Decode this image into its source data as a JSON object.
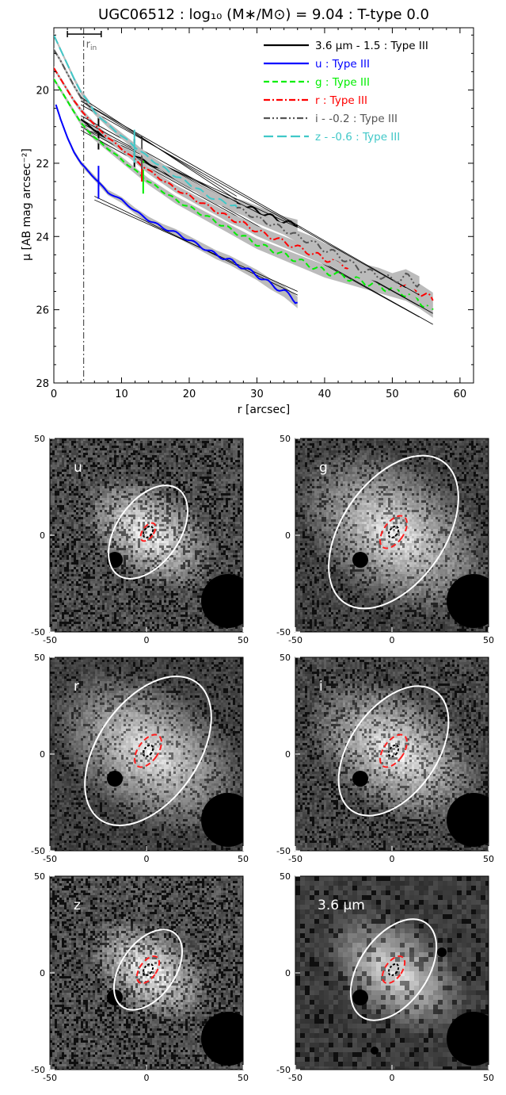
{
  "title": "UGC06512 : log₁₀ (M∗/M⊙) = 9.04 : T-type 0.0",
  "colors": {
    "band_3_6": "#000000",
    "band_u": "#0000ff",
    "band_g": "#00ee00",
    "band_r": "#ff0000",
    "band_i": "#555555",
    "band_z": "#40c8c8",
    "rin_line": "#555555",
    "ellipse_outer": "#ffffff",
    "ellipse_inner": "#ff2020",
    "ellipse_core": "#000000"
  },
  "chart_data": [
    {
      "type": "line",
      "xlabel": "r [arcsec]",
      "ylabel": "μ [AB mag arcsec⁻²]",
      "xlim": [
        0,
        62
      ],
      "ylim": [
        28,
        18.3
      ],
      "y_inverted": true,
      "xticks": [
        0,
        10,
        20,
        30,
        40,
        50,
        60
      ],
      "yticks": [
        20,
        22,
        24,
        26,
        28
      ],
      "legend_position": "top-right",
      "r_in": {
        "label": "r",
        "subscript": "in",
        "value": 4.4,
        "bar": [
          2,
          7
        ]
      },
      "series": [
        {
          "name": "3.6 μm - 1.5 : Type III",
          "color_key": "band_3_6",
          "style": "solid",
          "x": [
            4,
            6,
            8,
            10,
            12,
            14,
            16,
            18,
            20,
            22,
            24,
            26,
            28,
            30,
            32,
            34,
            36
          ],
          "y": [
            20.8,
            21.1,
            21.35,
            21.6,
            21.8,
            22.0,
            22.2,
            22.4,
            22.6,
            22.75,
            22.9,
            23.05,
            23.15,
            23.3,
            23.45,
            23.6,
            23.7
          ],
          "breaks": [
            6.6,
            11.9
          ],
          "fits": [
            {
              "x": [
                4,
                36
              ],
              "y": [
                20.9,
                23.9
              ]
            },
            {
              "x": [
                4,
                36
              ],
              "y": [
                21.0,
                23.75
              ]
            }
          ]
        },
        {
          "name": "u : Type III",
          "color_key": "band_u",
          "style": "solid",
          "x": [
            0.3,
            1,
            2,
            3,
            4,
            5,
            6,
            7,
            8,
            10,
            12,
            14,
            16,
            18,
            20,
            22,
            24,
            26,
            28,
            30,
            32,
            34,
            36
          ],
          "y": [
            20.4,
            20.8,
            21.3,
            21.7,
            22.0,
            22.2,
            22.4,
            22.6,
            22.8,
            23.0,
            23.3,
            23.55,
            23.75,
            23.9,
            24.1,
            24.3,
            24.5,
            24.65,
            24.85,
            25.05,
            25.3,
            25.5,
            25.8
          ],
          "breaks": [
            6.6
          ],
          "fits": [
            {
              "x": [
                6,
                36
              ],
              "y": [
                22.9,
                25.6
              ]
            },
            {
              "x": [
                6,
                36
              ],
              "y": [
                23.0,
                25.5
              ]
            }
          ]
        },
        {
          "name": "g : Type III",
          "color_key": "band_g",
          "style": "dashed",
          "x": [
            0,
            1,
            2,
            3,
            4,
            6,
            8,
            10,
            12,
            14,
            16,
            18,
            20,
            22,
            24,
            26,
            28,
            30,
            32,
            34,
            36,
            38,
            40,
            42,
            44,
            46,
            48,
            50,
            52,
            54,
            56
          ],
          "y": [
            19.7,
            20.0,
            20.3,
            20.6,
            20.9,
            21.3,
            21.6,
            21.9,
            22.2,
            22.5,
            22.75,
            23.0,
            23.2,
            23.4,
            23.6,
            23.8,
            24.0,
            24.2,
            24.35,
            24.5,
            24.65,
            24.8,
            24.95,
            25.05,
            25.15,
            25.25,
            25.35,
            25.45,
            25.55,
            25.75,
            26.0
          ],
          "breaks": [
            13.2
          ],
          "fits": [
            {
              "x": [
                4,
                56
              ],
              "y": [
                21.0,
                26.4
              ]
            },
            {
              "x": [
                4,
                54
              ],
              "y": [
                21.1,
                26.2
              ]
            }
          ]
        },
        {
          "name": "r : Type III",
          "color_key": "band_r",
          "style": "dashdot",
          "x": [
            0,
            1,
            2,
            3,
            4,
            6,
            8,
            10,
            12,
            14,
            16,
            18,
            20,
            22,
            24,
            26,
            28,
            30,
            32,
            34,
            36,
            38,
            40,
            42,
            44,
            46,
            48,
            50,
            52,
            54,
            56
          ],
          "y": [
            19.4,
            19.7,
            20.0,
            20.3,
            20.55,
            20.95,
            21.3,
            21.6,
            21.9,
            22.2,
            22.45,
            22.7,
            22.9,
            23.1,
            23.3,
            23.5,
            23.65,
            23.85,
            24.0,
            24.15,
            24.3,
            24.45,
            24.6,
            24.7,
            24.85,
            25.0,
            25.1,
            25.2,
            25.3,
            25.5,
            25.75
          ],
          "breaks": [
            13
          ],
          "fits": [
            {
              "x": [
                4,
                56
              ],
              "y": [
                20.7,
                26.1
              ]
            },
            {
              "x": [
                4,
                54
              ],
              "y": [
                20.8,
                25.9
              ]
            }
          ]
        },
        {
          "name": "i - -0.2 : Type III",
          "color_key": "band_i",
          "style": "dashdotdot",
          "x": [
            0,
            1,
            2,
            3,
            4,
            6,
            8,
            10,
            12,
            14,
            16,
            18,
            20,
            22,
            24,
            26,
            28,
            30,
            32,
            34,
            36,
            38,
            40,
            42,
            44,
            46,
            48,
            50,
            52,
            54
          ],
          "y": [
            18.9,
            19.2,
            19.55,
            19.9,
            20.2,
            20.6,
            20.95,
            21.25,
            21.55,
            21.85,
            22.1,
            22.35,
            22.55,
            22.75,
            22.95,
            23.15,
            23.3,
            23.5,
            23.65,
            23.8,
            24.0,
            24.15,
            24.35,
            24.5,
            24.75,
            24.95,
            25.05,
            25.2,
            25.1,
            25.3
          ],
          "breaks": [
            13
          ],
          "fits": [
            {
              "x": [
                4,
                54
              ],
              "y": [
                20.3,
                25.6
              ]
            },
            {
              "x": [
                4,
                52
              ],
              "y": [
                20.4,
                25.4
              ]
            }
          ]
        },
        {
          "name": "z - -0.6 : Type III",
          "color_key": "band_z",
          "style": "longdash",
          "x": [
            0,
            1,
            2,
            3,
            4,
            5,
            6,
            8,
            10,
            12,
            14,
            16,
            18,
            20,
            22,
            24,
            26,
            27
          ],
          "y": [
            18.5,
            18.9,
            19.3,
            19.7,
            20.05,
            20.3,
            20.6,
            20.95,
            21.25,
            21.55,
            21.85,
            22.1,
            22.35,
            22.55,
            22.8,
            23.0,
            23.1,
            23.2
          ],
          "breaks": [
            11.9
          ],
          "fits": [
            {
              "x": [
                4,
                27
              ],
              "y": [
                20.2,
                23.0
              ]
            },
            {
              "x": [
                4,
                27
              ],
              "y": [
                20.3,
                22.9
              ]
            }
          ]
        }
      ]
    },
    {
      "type": "heatmap",
      "description_key": "image_panels",
      "xlim": [
        -50,
        50
      ],
      "ylim": [
        -50,
        50
      ],
      "xticks": [
        -50,
        0,
        50
      ],
      "yticks": [
        -50,
        0,
        50
      ],
      "panels": [
        {
          "label": "u",
          "outer_ellipse_scale": 0.72,
          "inner_ellipse_scale": 0.1,
          "noise_contrast": 0.95
        },
        {
          "label": "g",
          "outer_ellipse_scale": 1.18,
          "inner_ellipse_scale": 0.18,
          "noise_contrast": 0.7
        },
        {
          "label": "r",
          "outer_ellipse_scale": 1.15,
          "inner_ellipse_scale": 0.18,
          "noise_contrast": 0.65
        },
        {
          "label": "i",
          "outer_ellipse_scale": 1.0,
          "inner_ellipse_scale": 0.18,
          "noise_contrast": 0.8
        },
        {
          "label": "z",
          "outer_ellipse_scale": 0.62,
          "inner_ellipse_scale": 0.15,
          "noise_contrast": 1.0
        },
        {
          "label": "3.6 μm",
          "outer_ellipse_scale": 0.78,
          "inner_ellipse_scale": 0.15,
          "noise_contrast": 0.55
        }
      ]
    }
  ]
}
